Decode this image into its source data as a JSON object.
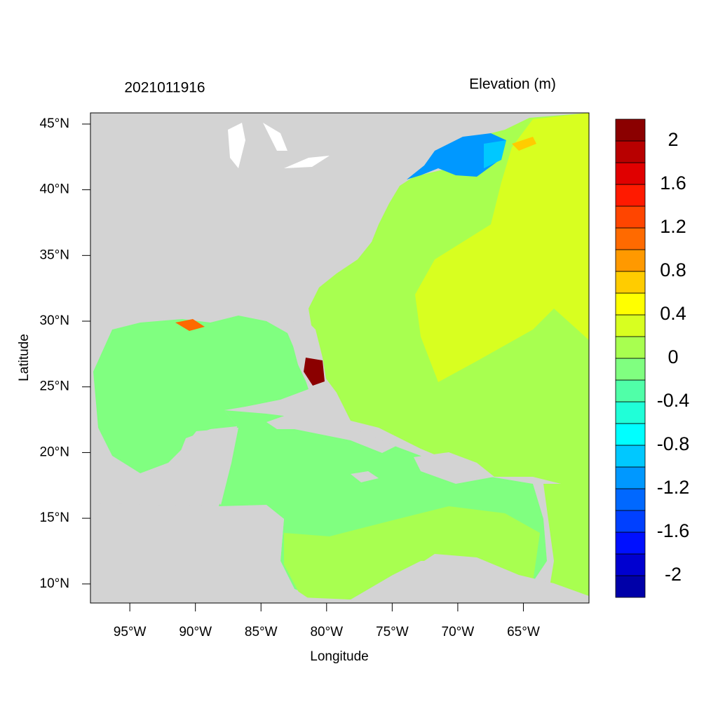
{
  "chart_data": {
    "type": "map",
    "title": "2021011916",
    "variable_label": "Elevation (m)",
    "xlabel": "Longitude",
    "ylabel": "Latitude",
    "xlim": [
      -98,
      -60
    ],
    "ylim": [
      8.55,
      45.85
    ],
    "xticks": [
      {
        "value": -95,
        "label": "95°W"
      },
      {
        "value": -90,
        "label": "90°W"
      },
      {
        "value": -85,
        "label": "85°W"
      },
      {
        "value": -80,
        "label": "80°W"
      },
      {
        "value": -75,
        "label": "75°W"
      },
      {
        "value": -70,
        "label": "70°W"
      },
      {
        "value": -65,
        "label": "65°W"
      }
    ],
    "yticks": [
      {
        "value": 10,
        "label": "10°N"
      },
      {
        "value": 15,
        "label": "15°N"
      },
      {
        "value": 20,
        "label": "20°N"
      },
      {
        "value": 25,
        "label": "25°N"
      },
      {
        "value": 30,
        "label": "30°N"
      },
      {
        "value": 35,
        "label": "35°N"
      },
      {
        "value": 40,
        "label": "40°N"
      },
      {
        "value": 45,
        "label": "45°N"
      }
    ],
    "colorbar": {
      "levels": [
        -2.2,
        -2,
        -1.8,
        -1.6,
        -1.4,
        -1.2,
        -1,
        -0.8,
        -0.6,
        -0.4,
        -0.2,
        0,
        0.2,
        0.4,
        0.6,
        0.8,
        1,
        1.2,
        1.4,
        1.6,
        1.8,
        2,
        2.2
      ],
      "colors": [
        "#0000a8",
        "#0000d0",
        "#0010ff",
        "#0040ff",
        "#0068ff",
        "#0098ff",
        "#00c8ff",
        "#00ffff",
        "#20ffd8",
        "#50ffa8",
        "#80ff80",
        "#a8ff50",
        "#d8ff20",
        "#ffff00",
        "#ffcc00",
        "#ff9900",
        "#ff6a00",
        "#ff4500",
        "#ff1a00",
        "#e00000",
        "#b80000",
        "#8b0000"
      ],
      "ticks": [
        -2,
        -1.6,
        -1.2,
        -0.8,
        -0.4,
        0,
        0.4,
        0.8,
        1.2,
        1.6,
        2
      ]
    }
  }
}
